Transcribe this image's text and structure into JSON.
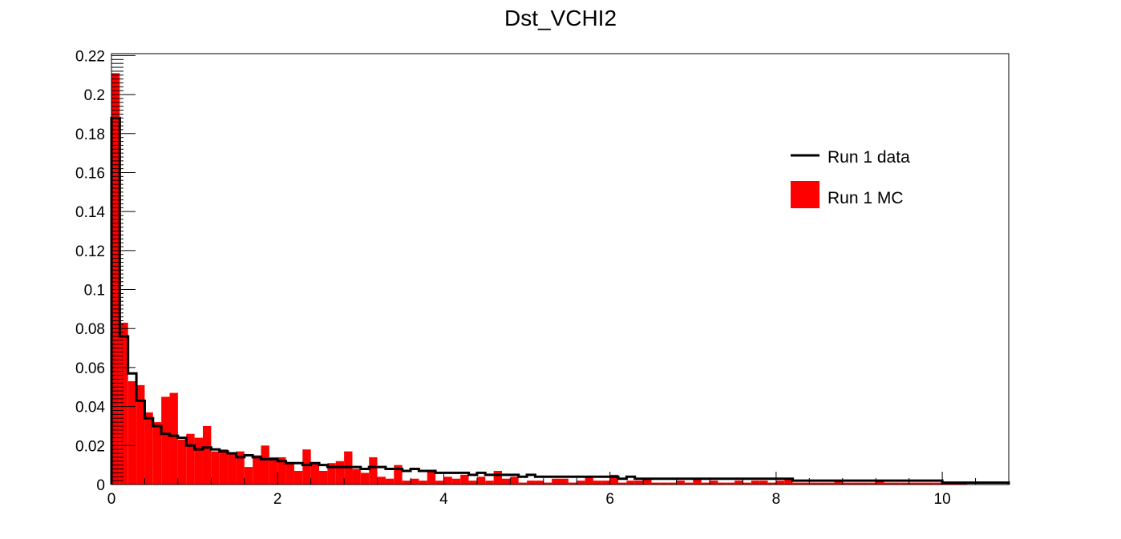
{
  "chart_data": {
    "type": "bar",
    "title": "Dst_VCHI2",
    "xlabel": "",
    "ylabel": "",
    "xlim": [
      0,
      10.8
    ],
    "ylim": [
      0,
      0.221
    ],
    "bin_width": 0.1,
    "x_ticks": [
      0,
      2,
      4,
      6,
      8,
      10
    ],
    "x_tick_labels": [
      "0",
      "2",
      "4",
      "6",
      "8",
      "10"
    ],
    "y_ticks": [
      0,
      0.02,
      0.04,
      0.06,
      0.08,
      0.1,
      0.12,
      0.14,
      0.16,
      0.18,
      0.2,
      0.22
    ],
    "y_tick_labels": [
      "0",
      "0.02",
      "0.04",
      "0.06",
      "0.08",
      "0.1",
      "0.12",
      "0.14",
      "0.16",
      "0.18",
      "0.2",
      "0.22"
    ],
    "legend_position": "top-right",
    "series": [
      {
        "name": "Run 1 data",
        "style": "step-line",
        "color": "#000000",
        "values": [
          0.188,
          0.076,
          0.057,
          0.043,
          0.034,
          0.03,
          0.026,
          0.025,
          0.024,
          0.02,
          0.018,
          0.019,
          0.018,
          0.017,
          0.016,
          0.014,
          0.015,
          0.014,
          0.013,
          0.013,
          0.012,
          0.011,
          0.011,
          0.01,
          0.011,
          0.01,
          0.009,
          0.009,
          0.009,
          0.009,
          0.008,
          0.009,
          0.009,
          0.008,
          0.008,
          0.007,
          0.008,
          0.007,
          0.007,
          0.006,
          0.006,
          0.006,
          0.006,
          0.005,
          0.006,
          0.005,
          0.005,
          0.005,
          0.005,
          0.004,
          0.005,
          0.004,
          0.004,
          0.004,
          0.004,
          0.004,
          0.004,
          0.004,
          0.004,
          0.004,
          0.004,
          0.003,
          0.004,
          0.003,
          0.003,
          0.003,
          0.003,
          0.003,
          0.003,
          0.003,
          0.003,
          0.003,
          0.003,
          0.003,
          0.003,
          0.003,
          0.003,
          0.003,
          0.003,
          0.003,
          0.003,
          0.003,
          0.002,
          0.002,
          0.002,
          0.002,
          0.002,
          0.002,
          0.002,
          0.002,
          0.002,
          0.002,
          0.002,
          0.002,
          0.002,
          0.002,
          0.002,
          0.002,
          0.002,
          0.002,
          0.001,
          0.001,
          0.001,
          0.001,
          0.001,
          0.001,
          0.001,
          0.001
        ]
      },
      {
        "name": "Run 1 MC",
        "style": "filled-bars",
        "color": "#ff0000",
        "values": [
          0.211,
          0.083,
          0.053,
          0.051,
          0.037,
          0.032,
          0.045,
          0.047,
          0.023,
          0.026,
          0.024,
          0.03,
          0.017,
          0.018,
          0.016,
          0.017,
          0.009,
          0.015,
          0.02,
          0.014,
          0.014,
          0.011,
          0.007,
          0.018,
          0.011,
          0.007,
          0.011,
          0.012,
          0.017,
          0.008,
          0.006,
          0.014,
          0.004,
          0.003,
          0.01,
          0.002,
          0.003,
          0.002,
          0.007,
          0.002,
          0.004,
          0.003,
          0.005,
          0.002,
          0.004,
          0.002,
          0.007,
          0.003,
          0.004,
          0.001,
          0.002,
          0.002,
          0.001,
          0.003,
          0.003,
          0.001,
          0.002,
          0.004,
          0.002,
          0.002,
          0.005,
          0.001,
          0.002,
          0.002,
          0.003,
          0.001,
          0.001,
          0.001,
          0.002,
          0.001,
          0.003,
          0.001,
          0.002,
          0.001,
          0.001,
          0.002,
          0.001,
          0.002,
          0.002,
          0.001,
          0.002,
          0.003,
          0.001,
          0.001,
          0.001,
          0.001,
          0.001,
          0.002,
          0.001,
          0.001,
          0.001,
          0.001,
          0.002,
          0.001,
          0.001,
          0.001,
          0.001,
          0.001,
          0.001,
          0.001,
          0.001,
          0.001,
          0.001,
          0,
          0,
          0,
          0,
          0
        ]
      }
    ]
  }
}
